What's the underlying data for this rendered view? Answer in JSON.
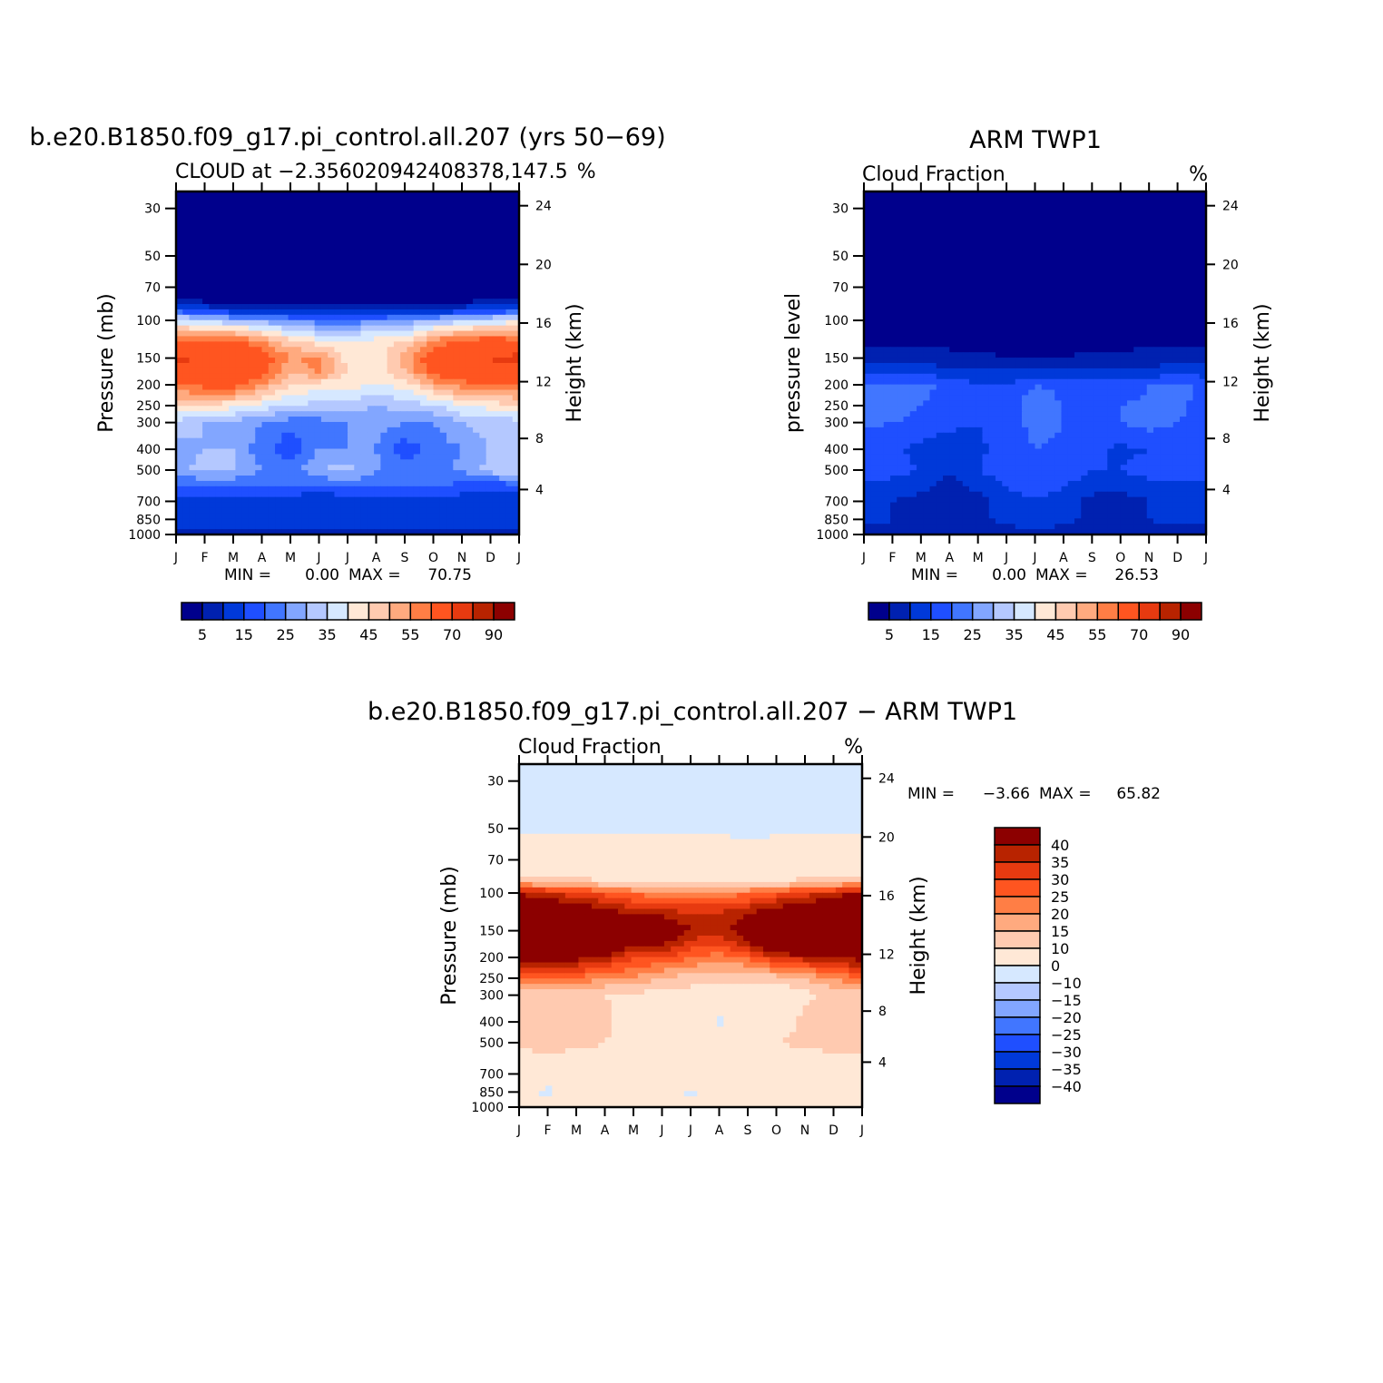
{
  "chart_data": [
    {
      "type": "heatmap",
      "title": "b.e20.B1850.f09_g17.pi_control.all.207 (yrs 50−69)",
      "subtitle_left": "CLOUD at −2.356020942408378,147.5",
      "subtitle_right": "%",
      "ylabel": "Pressure (mb)",
      "ylabel_right": "Height (km)",
      "min_max_text": [
        "MIN =",
        "0.00",
        "MAX =",
        "70.75"
      ],
      "x": [
        "J",
        "F",
        "M",
        "A",
        "M",
        "J",
        "J",
        "A",
        "S",
        "O",
        "N",
        "D",
        "J"
      ],
      "y_pressure": [
        25,
        30,
        50,
        70,
        80,
        90,
        100,
        125,
        150,
        175,
        200,
        250,
        300,
        400,
        500,
        600,
        700,
        850,
        1000
      ],
      "yticks": [
        30,
        50,
        70,
        100,
        150,
        200,
        250,
        300,
        400,
        500,
        700,
        850,
        1000
      ],
      "yticks_right": [
        4,
        8,
        12,
        16,
        20,
        24
      ],
      "ylim": [
        1000,
        25
      ],
      "y_scale": "log",
      "z": [
        [
          0,
          0,
          0,
          0,
          0,
          0,
          0,
          0,
          0,
          0,
          0,
          0,
          0
        ],
        [
          0,
          0,
          0,
          0,
          0,
          0,
          0,
          0,
          0,
          0,
          0,
          0,
          0
        ],
        [
          0,
          0,
          0,
          0,
          0,
          0,
          0,
          0,
          0,
          0,
          0,
          0,
          0
        ],
        [
          0,
          0,
          0,
          0,
          0,
          0,
          0,
          0,
          0,
          0,
          0,
          0,
          0
        ],
        [
          4,
          3,
          3,
          3,
          2,
          2,
          2,
          2,
          2,
          3,
          3,
          4,
          4
        ],
        [
          18,
          14,
          12,
          10,
          8,
          8,
          8,
          8,
          8,
          10,
          13,
          16,
          18
        ],
        [
          38,
          34,
          30,
          28,
          25,
          22,
          22,
          24,
          27,
          30,
          33,
          36,
          38
        ],
        [
          58,
          62,
          62,
          56,
          46,
          42,
          42,
          42,
          45,
          56,
          62,
          64,
          62
        ],
        [
          72,
          68,
          68,
          64,
          55,
          56,
          42,
          42,
          52,
          65,
          68,
          70,
          72
        ],
        [
          68,
          68,
          68,
          64,
          50,
          56,
          45,
          42,
          50,
          62,
          65,
          68,
          68
        ],
        [
          60,
          62,
          64,
          55,
          45,
          42,
          42,
          40,
          42,
          52,
          58,
          60,
          60
        ],
        [
          45,
          44,
          42,
          38,
          35,
          33,
          32,
          30,
          32,
          35,
          40,
          42,
          45
        ],
        [
          33,
          30,
          28,
          25,
          22,
          23,
          25,
          27,
          25,
          25,
          30,
          32,
          33
        ],
        [
          28,
          30,
          30,
          22,
          16,
          25,
          25,
          25,
          17,
          22,
          25,
          30,
          30
        ],
        [
          28,
          32,
          30,
          25,
          22,
          30,
          32,
          26,
          22,
          24,
          26,
          32,
          36
        ],
        [
          18,
          20,
          20,
          20,
          20,
          18,
          20,
          20,
          20,
          20,
          18,
          16,
          17
        ],
        [
          12,
          12,
          12,
          13,
          12,
          10,
          13,
          12,
          12,
          12,
          12,
          12,
          12
        ],
        [
          12,
          12,
          12,
          12,
          12,
          13,
          13,
          12,
          12,
          12,
          12,
          12,
          12
        ],
        [
          8,
          8,
          8,
          8,
          8,
          8,
          8,
          8,
          8,
          8,
          8,
          8,
          8
        ]
      ],
      "levels": [
        5,
        10,
        15,
        20,
        25,
        30,
        35,
        40,
        45,
        50,
        55,
        60,
        70,
        80,
        90
      ],
      "colorbar_labels": [
        "5",
        "15",
        "25",
        "35",
        "45",
        "55",
        "70",
        "90"
      ]
    },
    {
      "type": "heatmap",
      "title": "ARM TWP1",
      "subtitle_left": "Cloud Fraction",
      "subtitle_right": "%",
      "ylabel": "pressure level",
      "ylabel_right": "Height (km)",
      "min_max_text": [
        "MIN =",
        "0.00",
        "MAX =",
        "26.53"
      ],
      "x": [
        "J",
        "F",
        "M",
        "A",
        "M",
        "J",
        "J",
        "A",
        "S",
        "O",
        "N",
        "D",
        "J"
      ],
      "y_pressure": [
        25,
        30,
        50,
        70,
        80,
        90,
        100,
        125,
        150,
        175,
        200,
        250,
        300,
        400,
        500,
        600,
        700,
        850,
        1000
      ],
      "yticks": [
        30,
        50,
        70,
        100,
        150,
        200,
        250,
        300,
        400,
        500,
        700,
        850,
        1000
      ],
      "yticks_right": [
        4,
        8,
        12,
        16,
        20,
        24
      ],
      "ylim": [
        1000,
        25
      ],
      "y_scale": "log",
      "z": [
        [
          0,
          0,
          0,
          0,
          0,
          0,
          0,
          0,
          0,
          0,
          0,
          0,
          0
        ],
        [
          0,
          0,
          0,
          0,
          0,
          0,
          0,
          0,
          0,
          0,
          0,
          0,
          0
        ],
        [
          0,
          0,
          0,
          0,
          0,
          0,
          0,
          0,
          0,
          0,
          0,
          0,
          0
        ],
        [
          0,
          0,
          0,
          0,
          0,
          0,
          0,
          0,
          0,
          0,
          0,
          0,
          0
        ],
        [
          1,
          1,
          1,
          1,
          1,
          1,
          1,
          1,
          1,
          1,
          1,
          1,
          1
        ],
        [
          1,
          1,
          1,
          1,
          1,
          1,
          1,
          1,
          1,
          1,
          1,
          1,
          1
        ],
        [
          2,
          2,
          2,
          2,
          2,
          2,
          2,
          2,
          2,
          2,
          2,
          2,
          2
        ],
        [
          4,
          4,
          4,
          3,
          3,
          3,
          3,
          3,
          3,
          3,
          4,
          4,
          4
        ],
        [
          8,
          8,
          8,
          7,
          6,
          5,
          5,
          5,
          6,
          6,
          7,
          8,
          8
        ],
        [
          13,
          13,
          13,
          12,
          11,
          11,
          11,
          11,
          11,
          12,
          12,
          13,
          13
        ],
        [
          22,
          22,
          22,
          18,
          15,
          15,
          20,
          18,
          17,
          17,
          20,
          22,
          18
        ],
        [
          22,
          22,
          20,
          17,
          15,
          16,
          25,
          20,
          17,
          20,
          21,
          22,
          17
        ],
        [
          21,
          20,
          19,
          17,
          15,
          17,
          22,
          20,
          17,
          20,
          22,
          20,
          18
        ],
        [
          17,
          16,
          13,
          10,
          14,
          17,
          20,
          19,
          16,
          14,
          15,
          16,
          17
        ],
        [
          17,
          17,
          15,
          10,
          15,
          18,
          20,
          18,
          15,
          15,
          17,
          17,
          17
        ],
        [
          14,
          13,
          11,
          8,
          11,
          15,
          17,
          15,
          12,
          11,
          13,
          14,
          14
        ],
        [
          12,
          10,
          8,
          7,
          8,
          12,
          15,
          12,
          8,
          8,
          10,
          12,
          12
        ],
        [
          12,
          10,
          8,
          7,
          8,
          12,
          15,
          12,
          8,
          8,
          10,
          12,
          12
        ],
        [
          7,
          7,
          7,
          7,
          7,
          7,
          7,
          7,
          7,
          7,
          7,
          7,
          7
        ]
      ],
      "levels": [
        5,
        10,
        15,
        20,
        25,
        30,
        35,
        40,
        45,
        50,
        55,
        60,
        70,
        80,
        90
      ],
      "colorbar_labels": [
        "5",
        "15",
        "25",
        "35",
        "45",
        "55",
        "70",
        "90"
      ]
    },
    {
      "type": "heatmap",
      "title": "b.e20.B1850.f09_g17.pi_control.all.207 − ARM TWP1",
      "subtitle_left": "Cloud Fraction",
      "subtitle_right": "%",
      "ylabel": "Pressure (mb)",
      "ylabel_right": "Height (km)",
      "min_max_text": [
        "MIN =",
        "−3.66",
        "MAX =",
        "65.82"
      ],
      "x": [
        "J",
        "F",
        "M",
        "A",
        "M",
        "J",
        "J",
        "A",
        "S",
        "O",
        "N",
        "D",
        "J"
      ],
      "y_pressure": [
        25,
        30,
        50,
        70,
        80,
        90,
        100,
        125,
        150,
        175,
        200,
        250,
        300,
        400,
        500,
        600,
        700,
        850,
        1000
      ],
      "yticks": [
        30,
        50,
        70,
        100,
        150,
        200,
        250,
        300,
        400,
        500,
        700,
        850,
        1000
      ],
      "yticks_right": [
        4,
        8,
        12,
        16,
        20,
        24
      ],
      "ylim": [
        1000,
        25
      ],
      "y_scale": "log",
      "z": [
        [
          -3,
          -3,
          -3,
          -3,
          -3,
          -3,
          -3,
          -3,
          -3,
          -3,
          -3,
          -3,
          -3
        ],
        [
          -3,
          -3,
          -3,
          -3,
          -3,
          -3,
          -3,
          -3,
          -3,
          -3,
          -3,
          -3,
          -3
        ],
        [
          -1,
          -1,
          -1,
          -1,
          -1,
          -1,
          -1,
          -1,
          -3,
          -1,
          -1,
          -1,
          -1
        ],
        [
          5,
          5,
          5,
          5,
          5,
          5,
          5,
          5,
          5,
          5,
          5,
          5,
          5
        ],
        [
          6,
          5,
          5,
          5,
          5,
          5,
          5,
          5,
          5,
          5,
          5,
          6,
          8
        ],
        [
          18,
          16,
          14,
          12,
          10,
          9,
          9,
          9,
          9,
          11,
          14,
          16,
          18
        ],
        [
          40,
          36,
          32,
          28,
          24,
          22,
          22,
          22,
          24,
          28,
          32,
          36,
          42
        ],
        [
          50,
          50,
          48,
          44,
          40,
          38,
          35,
          36,
          40,
          46,
          50,
          52,
          52
        ],
        [
          60,
          60,
          60,
          55,
          50,
          50,
          40,
          37,
          45,
          60,
          60,
          60,
          60
        ],
        [
          52,
          52,
          52,
          50,
          42,
          40,
          32,
          30,
          38,
          50,
          52,
          52,
          52
        ],
        [
          42,
          42,
          42,
          38,
          30,
          30,
          25,
          22,
          25,
          35,
          38,
          42,
          42
        ],
        [
          25,
          25,
          25,
          20,
          20,
          15,
          12,
          12,
          12,
          12,
          15,
          20,
          25
        ],
        [
          12,
          12,
          12,
          10,
          8,
          8,
          8,
          5,
          5,
          5,
          8,
          12,
          12
        ],
        [
          12,
          15,
          15,
          12,
          5,
          5,
          5,
          -1,
          5,
          5,
          12,
          14,
          15
        ],
        [
          12,
          15,
          13,
          10,
          5,
          5,
          5,
          5,
          5,
          10,
          12,
          15,
          15
        ],
        [
          6,
          6,
          6,
          5,
          5,
          5,
          5,
          5,
          5,
          5,
          5,
          6,
          6
        ],
        [
          5,
          5,
          5,
          5,
          5,
          5,
          3,
          3,
          5,
          5,
          5,
          5,
          5
        ],
        [
          3,
          -2,
          5,
          5,
          5,
          5,
          -1,
          3,
          5,
          5,
          5,
          5,
          5
        ],
        [
          2,
          2,
          2,
          2,
          2,
          2,
          2,
          2,
          2,
          2,
          2,
          2,
          2
        ]
      ],
      "levels": [
        -40,
        -35,
        -30,
        -25,
        -20,
        -15,
        -10,
        0,
        10,
        15,
        20,
        25,
        30,
        35,
        40
      ],
      "colorbar_labels": [
        "40",
        "35",
        "30",
        "25",
        "20",
        "15",
        "10",
        "0",
        "−10",
        "−15",
        "−20",
        "−25",
        "−30",
        "−35",
        "−40"
      ]
    }
  ],
  "colors": [
    "#00008c",
    "#0021b0",
    "#0039d9",
    "#1f4fff",
    "#4176ff",
    "#82a6ff",
    "#b4c8ff",
    "#d6e8ff",
    "#ffe8d6",
    "#ffcab0",
    "#ffaa7f",
    "#ff7e45",
    "#ff5520",
    "#e73a10",
    "#b82300",
    "#8c0000"
  ]
}
